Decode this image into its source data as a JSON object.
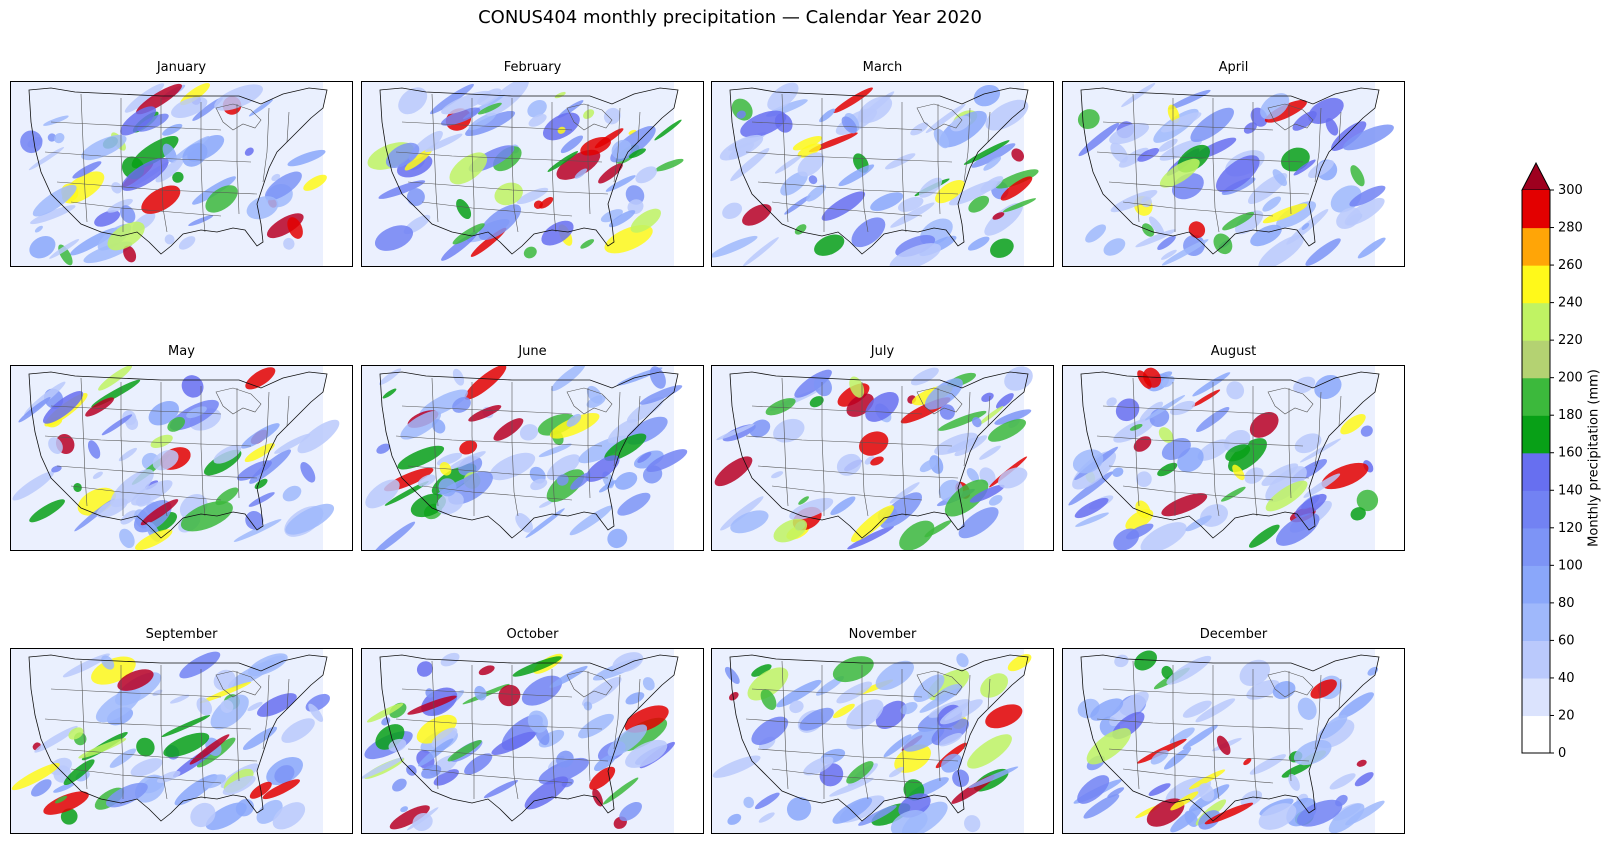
{
  "title": "CONUS404 monthly precipitation — Calendar Year 2020",
  "panels": [
    {
      "month": "January"
    },
    {
      "month": "February"
    },
    {
      "month": "March"
    },
    {
      "month": "April"
    },
    {
      "month": "May"
    },
    {
      "month": "June"
    },
    {
      "month": "July"
    },
    {
      "month": "August"
    },
    {
      "month": "September"
    },
    {
      "month": "October"
    },
    {
      "month": "November"
    },
    {
      "month": "December"
    }
  ],
  "colorbar": {
    "label": "Monthly precipitation (mm)",
    "ticks": [
      0,
      20,
      40,
      60,
      80,
      100,
      120,
      140,
      160,
      180,
      200,
      220,
      240,
      260,
      280,
      300
    ],
    "colors": [
      "#ffffff",
      "#dbe3fd",
      "#bac9fc",
      "#9fb8fb",
      "#8aa7fa",
      "#7d94f6",
      "#7282f3",
      "#676ff0",
      "#08a017",
      "#3cb93c",
      "#b4d272",
      "#c0f363",
      "#fff91a",
      "#ffa507",
      "#e30000",
      "#b80024"
    ],
    "extend_color": "#9e001f",
    "extend": "max"
  },
  "map_style": {
    "land_base": "#eaf0fe",
    "state_lines": "#555555",
    "coast_lines": "#111111"
  }
}
